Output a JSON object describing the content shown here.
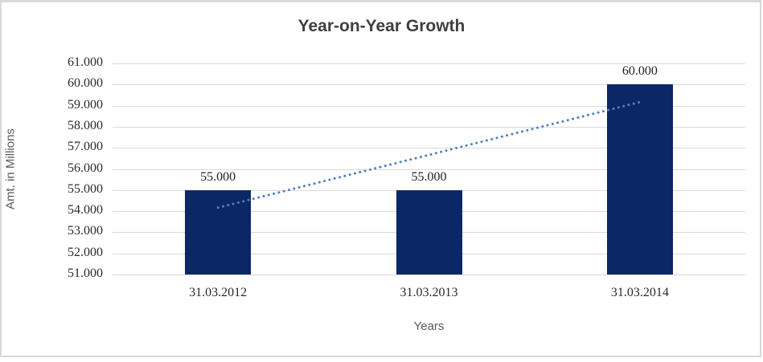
{
  "chart": {
    "title": "Year-on-Year Growth",
    "y_axis_title": "Amt. in Millions",
    "x_axis_title": "Years"
  },
  "chart_data": {
    "type": "bar",
    "title": "Year-on-Year Growth",
    "xlabel": "Years",
    "ylabel": "Amt. in Millions",
    "categories": [
      "31.03.2012",
      "31.03.2013",
      "31.03.2014"
    ],
    "series": [
      {
        "name": "Amt. in Millions",
        "values": [
          55.0,
          55.0,
          60.0
        ],
        "value_labels": [
          "55.000",
          "55.000",
          "60.000"
        ],
        "color": "#0c2766"
      }
    ],
    "trendline": {
      "type": "linear",
      "style": "dotted",
      "color": "#4f81bd",
      "endpoint_values": [
        54.167,
        59.167
      ]
    },
    "ylim": [
      51,
      61
    ],
    "ytick_step": 1,
    "yticks": [
      51,
      52,
      53,
      54,
      55,
      56,
      57,
      58,
      59,
      60,
      61
    ],
    "ytick_labels": [
      "51.000",
      "52.000",
      "53.000",
      "54.000",
      "55.000",
      "56.000",
      "57.000",
      "58.000",
      "59.000",
      "60.000",
      "61.000"
    ],
    "grid": "horizontal",
    "legend": "none",
    "bar_baseline": 51,
    "colors": {
      "bar": "#0c2766",
      "trendline": "#4f81bd",
      "gridline": "#d9d9d9",
      "frame_border": "#d9d9d9",
      "title_text": "#3f3f3f",
      "axis_title_text": "#595959",
      "tick_text": "#2b2b2b",
      "background": "#ffffff"
    }
  }
}
